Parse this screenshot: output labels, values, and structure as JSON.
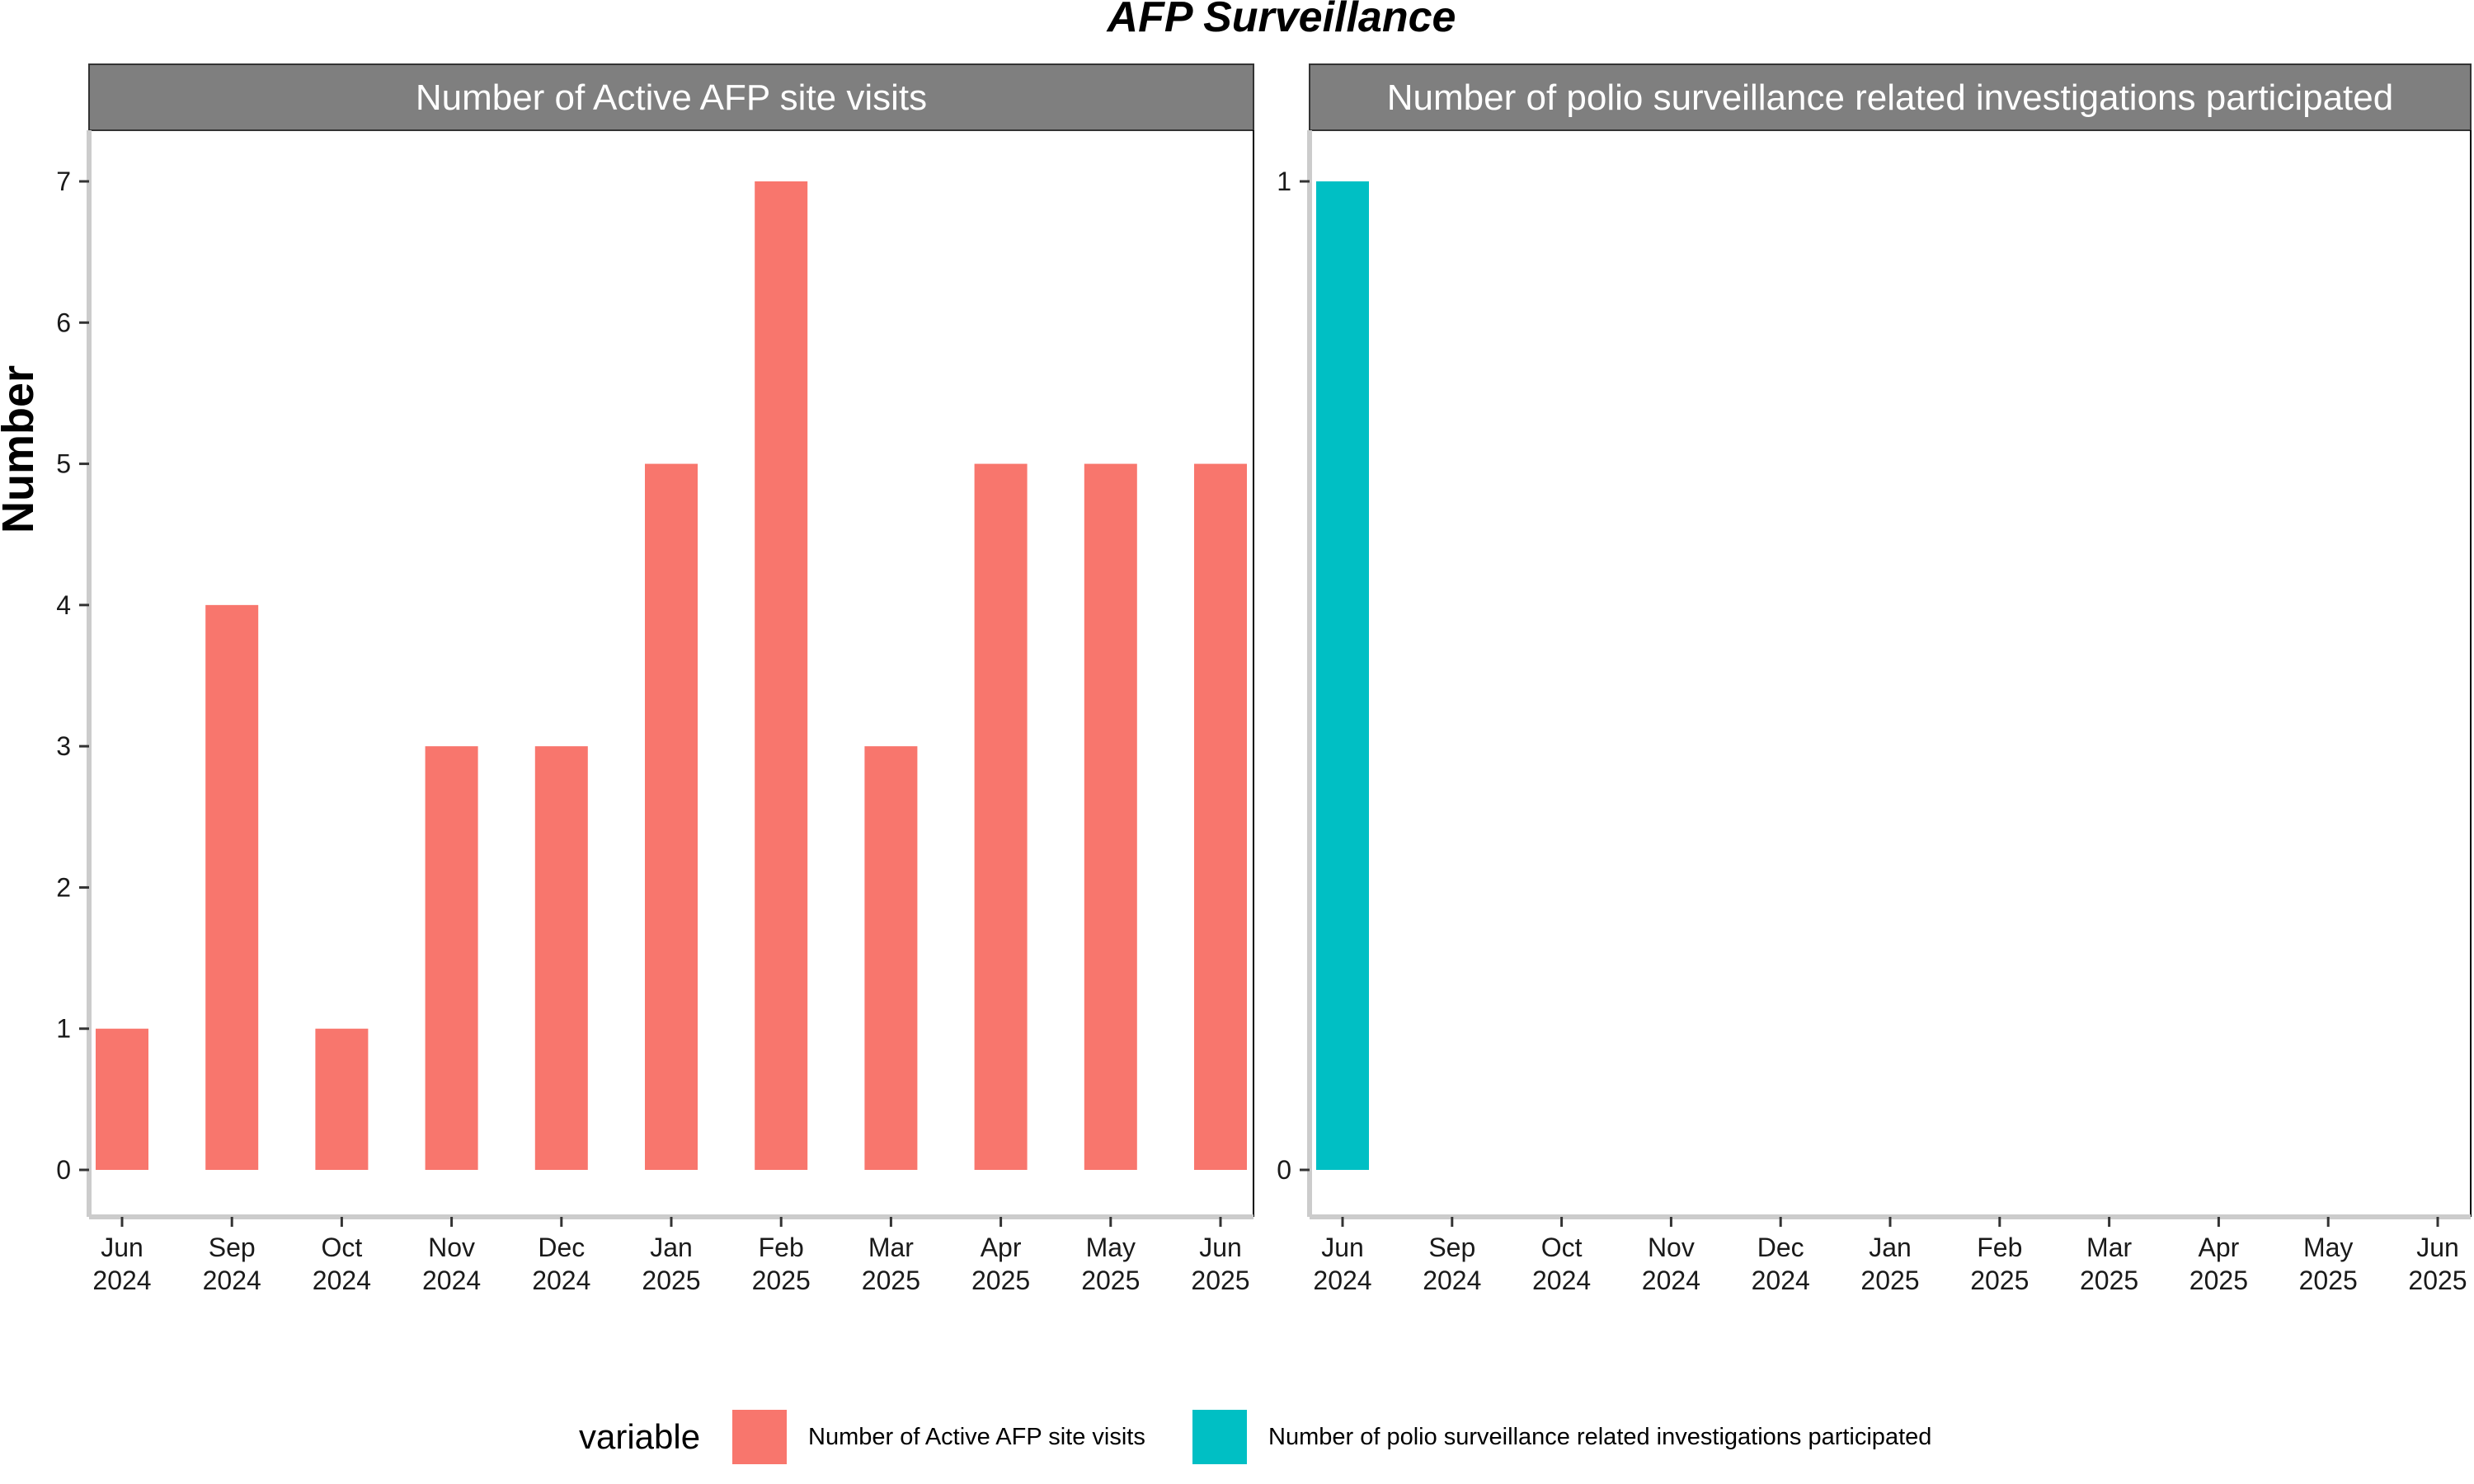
{
  "chart_data": {
    "type": "bar",
    "title": "AFP Surveillance",
    "ylabel": "Number",
    "xlabel": "",
    "categories": [
      [
        "Jun",
        "2024"
      ],
      [
        "Sep",
        "2024"
      ],
      [
        "Oct",
        "2024"
      ],
      [
        "Nov",
        "2024"
      ],
      [
        "Dec",
        "2024"
      ],
      [
        "Jan",
        "2025"
      ],
      [
        "Feb",
        "2025"
      ],
      [
        "Mar",
        "2025"
      ],
      [
        "Apr",
        "2025"
      ],
      [
        "May",
        "2025"
      ],
      [
        "Jun",
        "2025"
      ]
    ],
    "legend": {
      "title": "variable",
      "position": "bottom"
    },
    "panels": [
      {
        "strip": "Number of Active AFP site visits",
        "series_name": "Number of Active AFP site visits",
        "color": "#F8766D",
        "values": [
          1,
          4,
          1,
          3,
          3,
          5,
          7,
          3,
          5,
          5,
          5
        ],
        "ylim": [
          0,
          7
        ],
        "yticks": [
          0,
          1,
          2,
          3,
          4,
          5,
          6,
          7
        ]
      },
      {
        "strip": "Number of polio surveillance related investigations participated",
        "series_name": "Number of polio surveillance related investigations participated",
        "color": "#00BFC4",
        "values": [
          1,
          null,
          null,
          null,
          null,
          null,
          null,
          null,
          null,
          null,
          null
        ],
        "ylim": [
          0,
          1
        ],
        "yticks": [
          0,
          1
        ]
      }
    ]
  }
}
